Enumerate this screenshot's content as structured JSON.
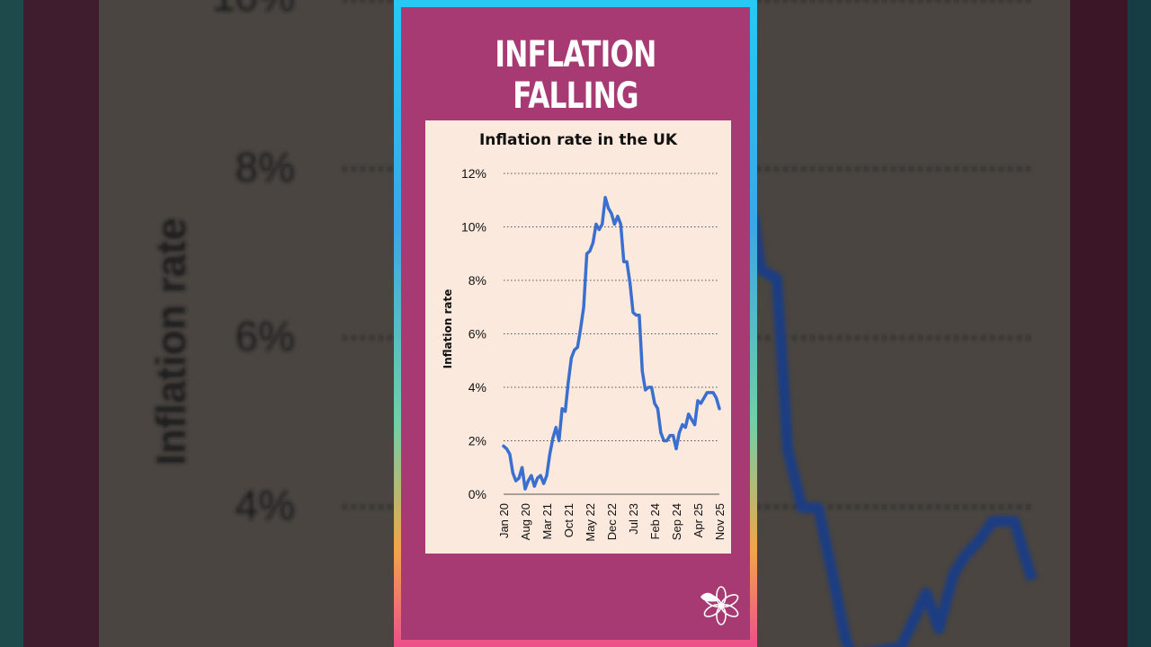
{
  "headline": "INFLATION FALLING",
  "chart_data": {
    "type": "line",
    "title": "Inflation rate in the UK",
    "xlabel": "",
    "ylabel": "Inflation rate",
    "y_ticks": [
      "0%",
      "2%",
      "4%",
      "6%",
      "8%",
      "10%",
      "12%"
    ],
    "ylim": [
      0,
      12
    ],
    "grid": "horizontal dotted",
    "x_tick_labels": [
      "Jan 20",
      "Aug 20",
      "Mar 21",
      "Oct 21",
      "May 22",
      "Dec 22",
      "Jul 23",
      "Feb 24",
      "Sep 24",
      "Apr 25",
      "Nov 25"
    ],
    "series": [
      {
        "color": "#3a6fcf",
        "x": [
          "Jan 20",
          "Feb 20",
          "Mar 20",
          "Apr 20",
          "May 20",
          "Jun 20",
          "Jul 20",
          "Aug 20",
          "Sep 20",
          "Oct 20",
          "Nov 20",
          "Dec 20",
          "Jan 21",
          "Feb 21",
          "Mar 21",
          "Apr 21",
          "May 21",
          "Jun 21",
          "Jul 21",
          "Aug 21",
          "Sep 21",
          "Oct 21",
          "Nov 21",
          "Dec 21",
          "Jan 22",
          "Feb 22",
          "Mar 22",
          "Apr 22",
          "May 22",
          "Jun 22",
          "Jul 22",
          "Aug 22",
          "Sep 22",
          "Oct 22",
          "Nov 22",
          "Dec 22",
          "Jan 23",
          "Feb 23",
          "Mar 23",
          "Apr 23",
          "May 23",
          "Jun 23",
          "Jul 23",
          "Aug 23",
          "Sep 23",
          "Oct 23",
          "Nov 23",
          "Dec 23",
          "Jan 24",
          "Feb 24",
          "Mar 24",
          "Apr 24",
          "May 24",
          "Jun 24",
          "Jul 24",
          "Aug 24",
          "Sep 24",
          "Oct 24",
          "Nov 24",
          "Dec 24",
          "Jan 25",
          "Feb 25",
          "Mar 25",
          "Apr 25",
          "May 25",
          "Jun 25",
          "Jul 25",
          "Aug 25",
          "Sep 25",
          "Oct 25",
          "Nov 25"
        ],
        "values": [
          1.8,
          1.7,
          1.5,
          0.8,
          0.5,
          0.6,
          1.0,
          0.2,
          0.5,
          0.7,
          0.3,
          0.6,
          0.7,
          0.4,
          0.7,
          1.5,
          2.1,
          2.5,
          2.0,
          3.2,
          3.1,
          4.2,
          5.1,
          5.4,
          5.5,
          6.2,
          7.0,
          9.0,
          9.1,
          9.4,
          10.1,
          9.9,
          10.1,
          11.1,
          10.7,
          10.5,
          10.1,
          10.4,
          10.1,
          8.7,
          8.7,
          7.9,
          6.8,
          6.7,
          6.7,
          4.6,
          3.9,
          4.0,
          4.0,
          3.4,
          3.2,
          2.3,
          2.0,
          2.0,
          2.2,
          2.2,
          1.7,
          2.3,
          2.6,
          2.5,
          3.0,
          2.8,
          2.6,
          3.5,
          3.4,
          3.6,
          3.8,
          3.8,
          3.8,
          3.6,
          3.2
        ]
      }
    ]
  }
}
